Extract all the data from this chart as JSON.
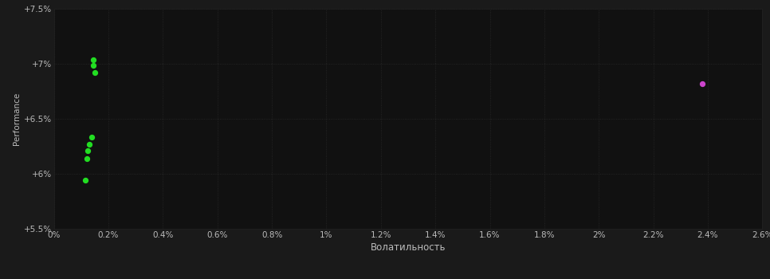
{
  "background_color": "#1a1a1a",
  "plot_bg_color": "#111111",
  "grid_color": "#2a2a2a",
  "text_color": "#bbbbbb",
  "xlabel": "Волатильность",
  "ylabel": "Performance",
  "xlim": [
    0.0,
    0.026
  ],
  "ylim": [
    0.055,
    0.075
  ],
  "yticks": [
    0.055,
    0.06,
    0.065,
    0.07,
    0.075
  ],
  "ytick_labels": [
    "+5.5%",
    "+6%",
    "+6.5%",
    "+7%",
    "+7.5%"
  ],
  "xticks": [
    0.0,
    0.002,
    0.004,
    0.006,
    0.008,
    0.01,
    0.012,
    0.014,
    0.016,
    0.018,
    0.02,
    0.022,
    0.024,
    0.026
  ],
  "xtick_labels": [
    "0%",
    "0.2%",
    "0.4%",
    "0.6%",
    "0.8%",
    "1%",
    "1.2%",
    "1.4%",
    "1.6%",
    "1.8%",
    "2%",
    "2.2%",
    "2.4%",
    "2.6%"
  ],
  "green_points": [
    [
      0.00145,
      0.0703
    ],
    [
      0.00145,
      0.0698
    ],
    [
      0.0015,
      0.0692
    ],
    [
      0.0014,
      0.0633
    ],
    [
      0.0013,
      0.0627
    ],
    [
      0.00125,
      0.0621
    ],
    [
      0.0012,
      0.0614
    ],
    [
      0.00115,
      0.0594
    ]
  ],
  "magenta_points": [
    [
      0.0238,
      0.0682
    ]
  ],
  "green_color": "#22dd22",
  "magenta_color": "#cc44cc",
  "point_size": 18
}
